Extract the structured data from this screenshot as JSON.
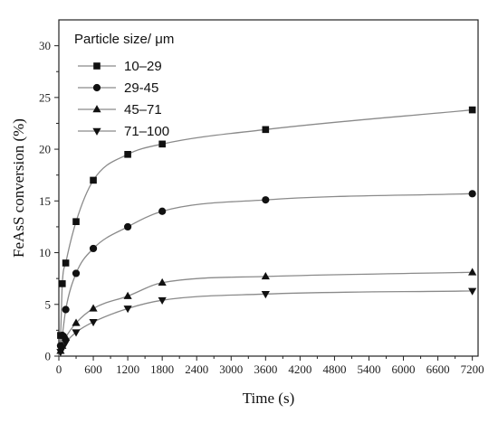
{
  "chart_data": {
    "type": "scatter",
    "xlabel": "Time (s)",
    "ylabel": "FeAsS conversion (%)",
    "xlim": [
      0,
      7300
    ],
    "ylim": [
      0,
      32.5
    ],
    "xticks": [
      0,
      600,
      1200,
      1800,
      2400,
      3000,
      3600,
      4200,
      4800,
      5400,
      6000,
      6600,
      7200
    ],
    "yticks": [
      0,
      5,
      10,
      15,
      20,
      25,
      30
    ],
    "legend_title": "Particle size/ μm",
    "legend_position": "top-left",
    "grid": false,
    "series": [
      {
        "name": "10–29",
        "marker": "square",
        "x": [
          0,
          30,
          60,
          120,
          300,
          600,
          1200,
          1800,
          3600,
          7200
        ],
        "y": [
          0,
          2.0,
          7.0,
          9.0,
          13.0,
          17.0,
          19.5,
          20.5,
          21.9,
          23.8
        ]
      },
      {
        "name": "29-45",
        "marker": "circle",
        "x": [
          0,
          30,
          60,
          120,
          300,
          600,
          1200,
          1800,
          3600,
          7200
        ],
        "y": [
          0,
          1.0,
          2.0,
          4.5,
          8.0,
          10.4,
          12.5,
          14.0,
          15.1,
          15.7
        ]
      },
      {
        "name": "45–71",
        "marker": "triangle-up",
        "x": [
          0,
          30,
          60,
          120,
          300,
          600,
          1200,
          1800,
          3600,
          7200
        ],
        "y": [
          0,
          0.5,
          1.0,
          1.8,
          3.2,
          4.6,
          5.8,
          7.1,
          7.7,
          8.1
        ]
      },
      {
        "name": "71–100",
        "marker": "triangle-down",
        "x": [
          0,
          30,
          60,
          120,
          300,
          600,
          1200,
          1800,
          3600,
          7200
        ],
        "y": [
          0,
          0.4,
          0.8,
          1.3,
          2.3,
          3.3,
          4.6,
          5.4,
          6.0,
          6.3
        ]
      }
    ]
  }
}
